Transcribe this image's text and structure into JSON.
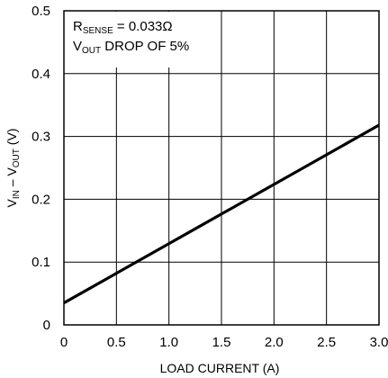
{
  "chart_data": {
    "type": "line",
    "xlabel": "LOAD CURRENT (A)",
    "ylabel": {
      "main": "V",
      "sub1": "IN",
      "mid": " – V",
      "sub2": "OUT",
      "end": " (V)"
    },
    "xlim": [
      0,
      3.0
    ],
    "ylim": [
      0,
      0.5
    ],
    "x_ticks": [
      "0",
      "0.5",
      "1.0",
      "1.5",
      "2.0",
      "2.5",
      "3.0"
    ],
    "y_ticks": [
      "0",
      "0.1",
      "0.2",
      "0.3",
      "0.4",
      "0.5"
    ],
    "grid": true,
    "annotations": [
      {
        "main": "R",
        "sub": "SENSE",
        "rest": " = 0.033Ω"
      },
      {
        "main": "V",
        "sub": "OUT",
        "rest": " DROP OF 5%"
      }
    ],
    "series": [
      {
        "x": [
          0,
          3.0
        ],
        "y": [
          0.035,
          0.318
        ]
      }
    ]
  }
}
